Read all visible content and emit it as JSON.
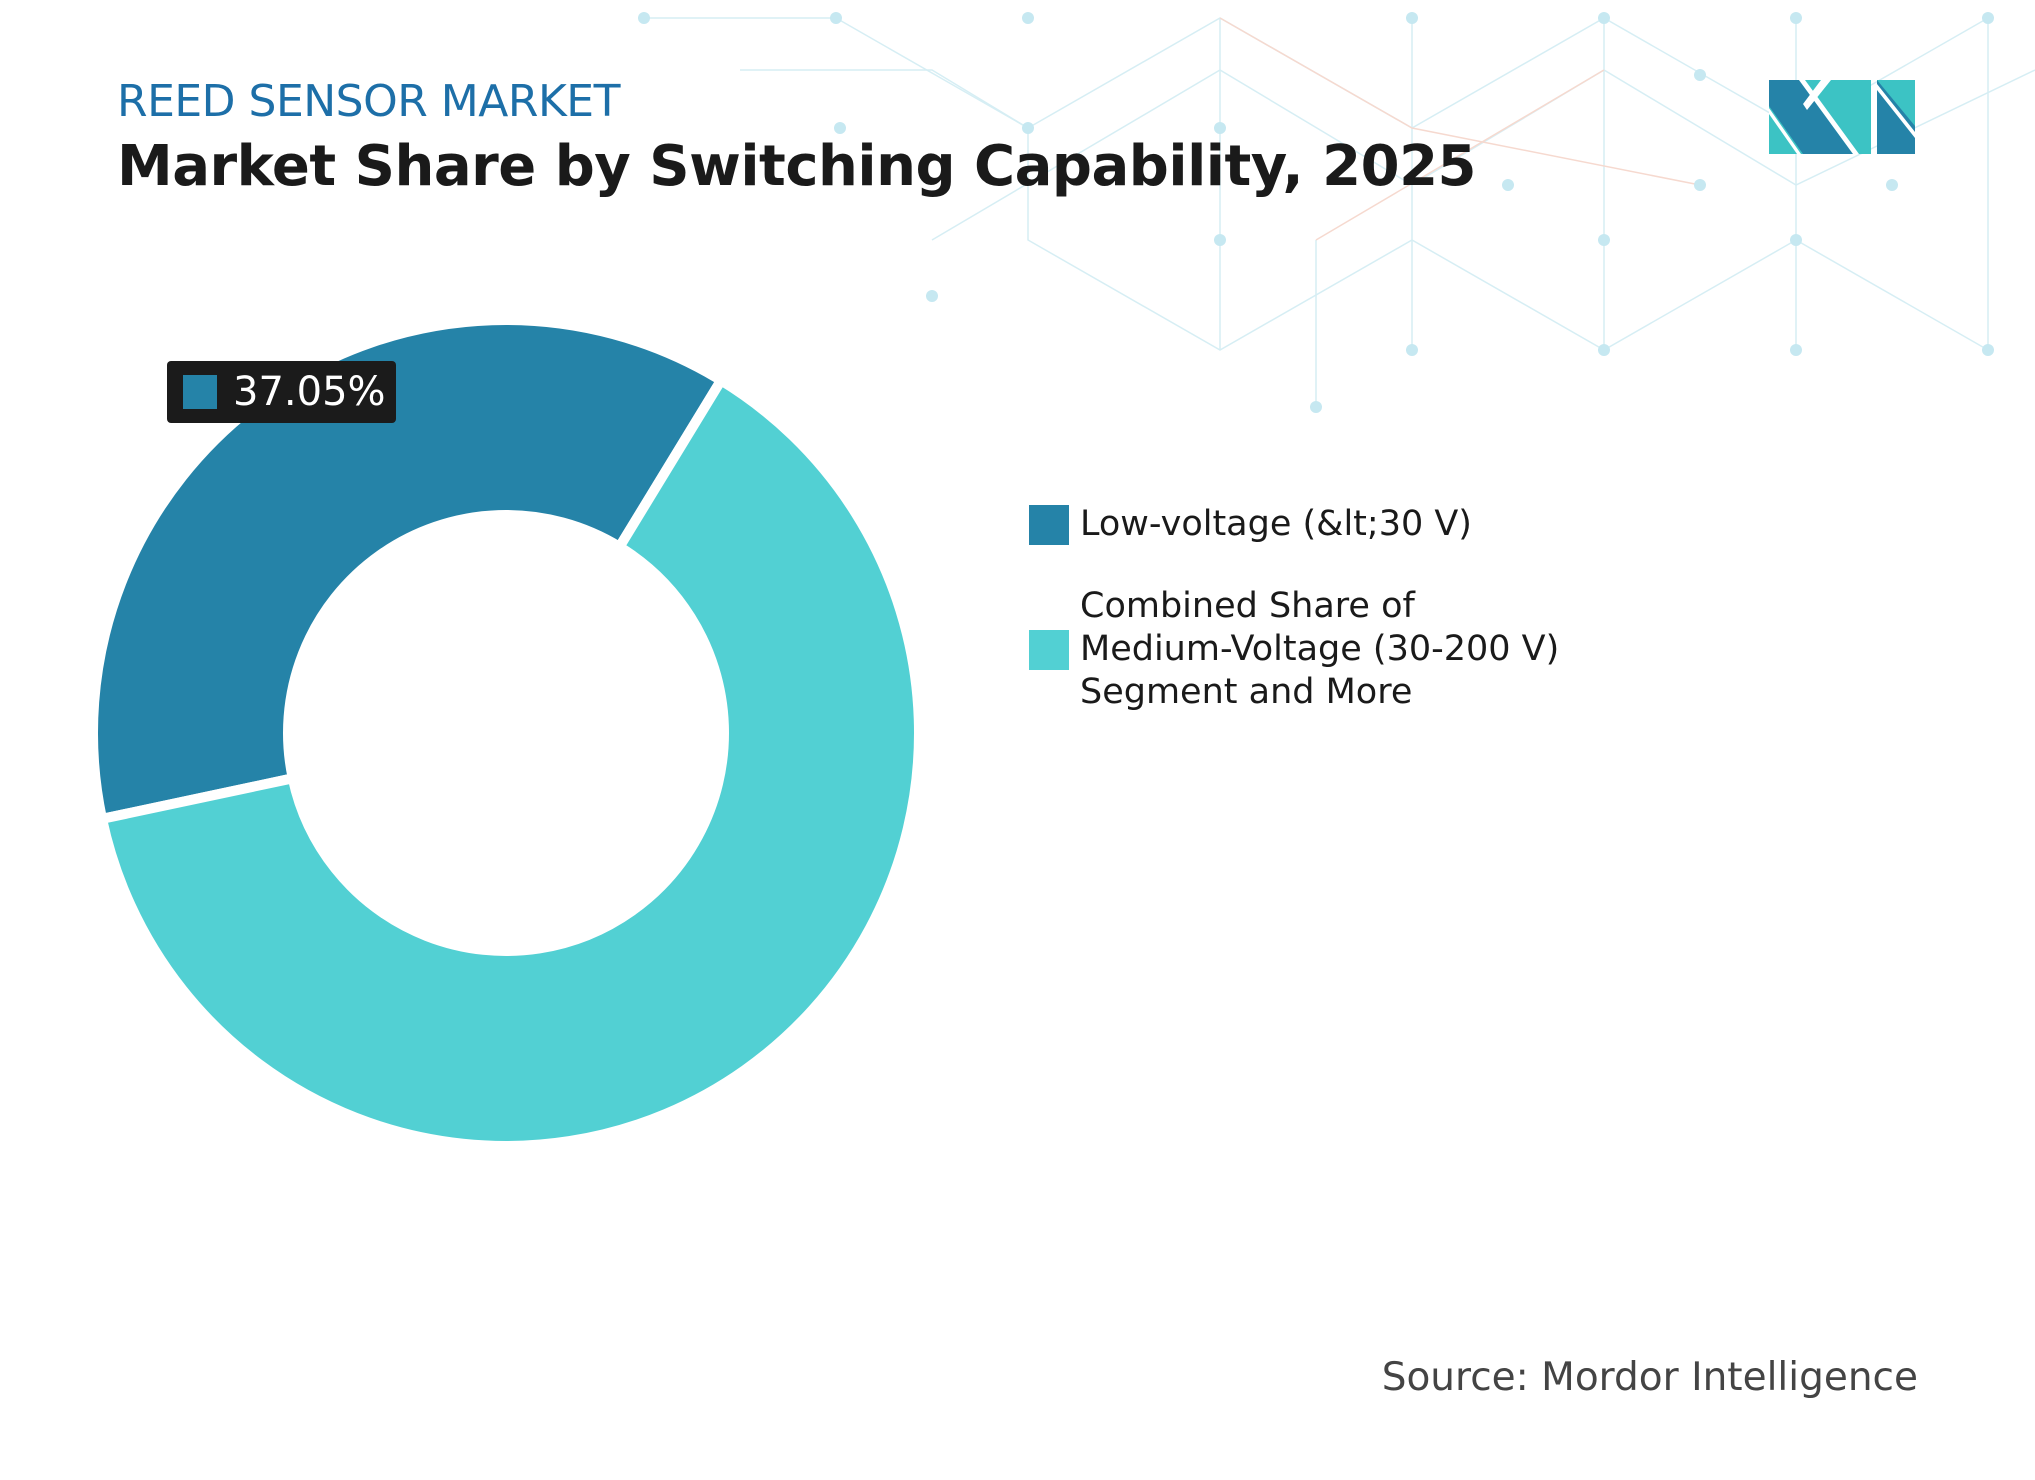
{
  "header": {
    "kicker": "REED SENSOR MARKET",
    "title": "Market Share by Switching Capability, 2025"
  },
  "logo": {
    "name": "mordor-intelligence-logo",
    "colors": [
      "#2583a8",
      "#3cc3c4"
    ]
  },
  "chart_data": {
    "type": "pie",
    "donut": true,
    "categories": [
      "Low-voltage (&lt;30 V)",
      "Combined Share of Medium-Voltage (30-200 V) Segment and More"
    ],
    "values": [
      37.05,
      62.95
    ],
    "colors": [
      "#2583a8",
      "#52d0d3"
    ],
    "data_labels": [
      {
        "category": "Low-voltage (&lt;30 V)",
        "text": "37.05%"
      }
    ],
    "legend": "right"
  },
  "legend": {
    "items": [
      {
        "label": "Low-voltage (&lt;30 V)",
        "color": "#2583a8"
      },
      {
        "label_lines": [
          "Combined Share of",
          "Medium-Voltage (30-200 V)",
          "Segment and More"
        ],
        "color": "#52d0d3"
      }
    ]
  },
  "footer": {
    "source": "Source: Mordor Intelligence"
  }
}
